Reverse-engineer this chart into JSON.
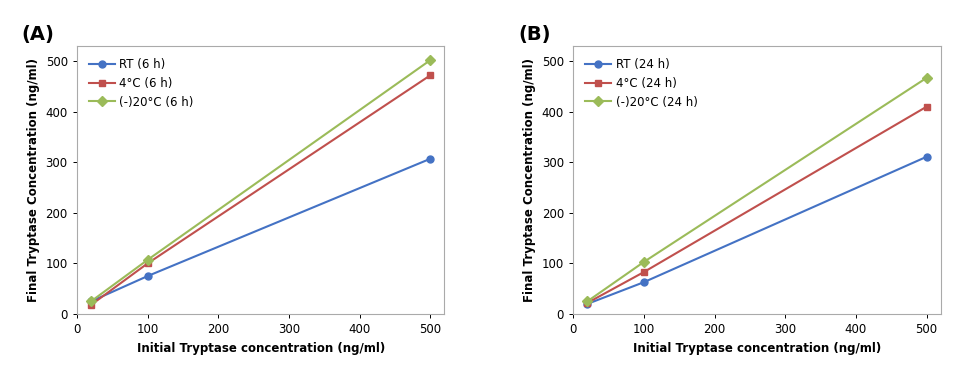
{
  "panel_A": {
    "label": "(A)",
    "x": [
      20,
      100,
      500
    ],
    "series": [
      {
        "label": "RT (6 h)",
        "y": [
          25,
          75,
          307
        ],
        "color": "#4472C4",
        "marker": "o",
        "markersize": 5,
        "linewidth": 1.5
      },
      {
        "label": "4°C (6 h)",
        "y": [
          18,
          100,
          472
        ],
        "color": "#C0504D",
        "marker": "s",
        "markersize": 5,
        "linewidth": 1.5
      },
      {
        "label": "(-)20°C (6 h)",
        "y": [
          25,
          107,
          502
        ],
        "color": "#9BBB59",
        "marker": "D",
        "markersize": 5,
        "linewidth": 1.5
      }
    ],
    "xlabel": "Initial Tryptase concentration (ng/ml)",
    "ylabel": "Final Tryptase Concentration (ng/ml)",
    "xlim": [
      0,
      520
    ],
    "ylim": [
      0,
      530
    ],
    "xticks": [
      0,
      100,
      200,
      300,
      400,
      500
    ],
    "yticks": [
      0,
      100,
      200,
      300,
      400,
      500
    ]
  },
  "panel_B": {
    "label": "(B)",
    "x": [
      20,
      100,
      500
    ],
    "series": [
      {
        "label": "RT (24 h)",
        "y": [
          20,
          63,
          311
        ],
        "color": "#4472C4",
        "marker": "o",
        "markersize": 5,
        "linewidth": 1.5
      },
      {
        "label": "4°C (24 h)",
        "y": [
          22,
          83,
          410
        ],
        "color": "#C0504D",
        "marker": "s",
        "markersize": 5,
        "linewidth": 1.5
      },
      {
        "label": "(-)20°C (24 h)",
        "y": [
          25,
          103,
          467
        ],
        "color": "#9BBB59",
        "marker": "D",
        "markersize": 5,
        "linewidth": 1.5
      }
    ],
    "xlabel": "Initial Tryptase concentration (ng/ml)",
    "ylabel": "Final Tryptase Concentration (ng/ml)",
    "xlim": [
      0,
      520
    ],
    "ylim": [
      0,
      530
    ],
    "xticks": [
      0,
      100,
      200,
      300,
      400,
      500
    ],
    "yticks": [
      0,
      100,
      200,
      300,
      400,
      500
    ]
  },
  "background_color": "#ffffff",
  "panel_label_fontsize": 14,
  "axis_label_fontsize": 8.5,
  "tick_fontsize": 8.5,
  "legend_fontsize": 8.5
}
